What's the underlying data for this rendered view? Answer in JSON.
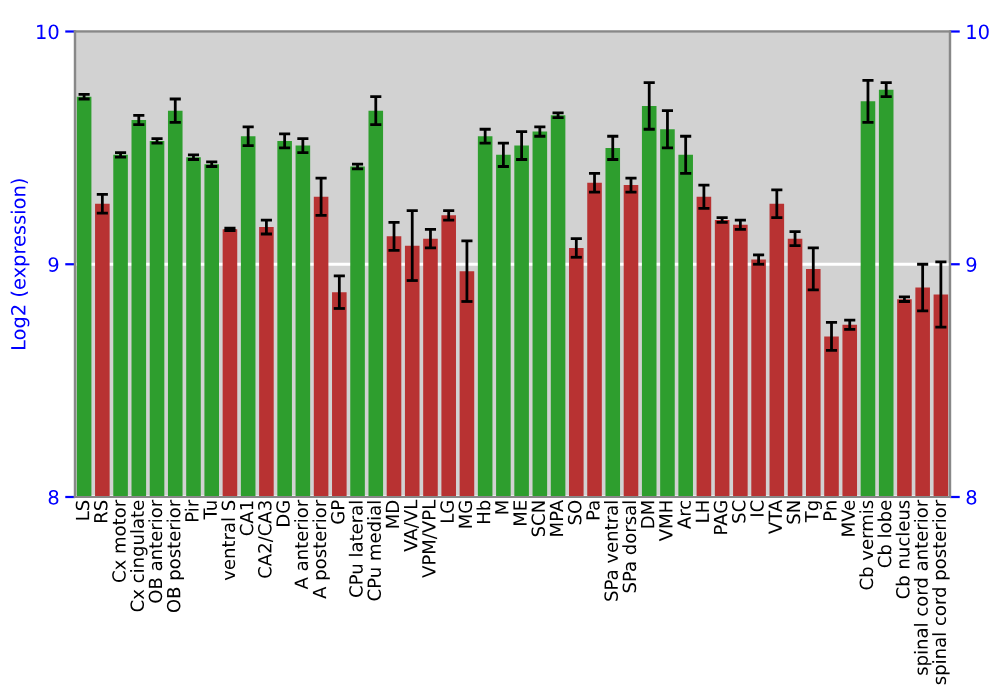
{
  "chart_data": {
    "type": "bar",
    "ylabel": "Log2 (expression)",
    "categories": [
      "LS",
      "RS",
      "Cx motor",
      "Cx cingulate",
      "OB anterior",
      "OB posterior",
      "Pir",
      "Tu",
      "ventral S",
      "CA1",
      "CA2/CA3",
      "DG",
      "A anterior",
      "A posterior",
      "GP",
      "CPu lateral",
      "CPu medial",
      "MD",
      "VA/VL",
      "VPM/VPL",
      "LG",
      "MG",
      "Hb",
      "M",
      "ME",
      "SCN",
      "MPA",
      "SO",
      "Pa",
      "SPa ventral",
      "SPa dorsal",
      "DM",
      "VMH",
      "Arc",
      "LH",
      "PAG",
      "SC",
      "IC",
      "VTA",
      "SN",
      "Tg",
      "Pn",
      "MVe",
      "Cb vermis",
      "Cb lobe",
      "Cb nucleus",
      "spinal cord anterior",
      "spinal cord posterior"
    ],
    "values": [
      9.72,
      9.26,
      9.47,
      9.62,
      9.53,
      9.66,
      9.46,
      9.43,
      9.15,
      9.55,
      9.16,
      9.53,
      9.51,
      9.29,
      8.88,
      9.42,
      9.66,
      9.12,
      9.08,
      9.11,
      9.21,
      8.97,
      9.55,
      9.47,
      9.51,
      9.57,
      9.64,
      9.07,
      9.35,
      9.5,
      9.34,
      9.68,
      9.58,
      9.47,
      9.29,
      9.19,
      9.17,
      9.02,
      9.26,
      9.11,
      8.98,
      8.69,
      8.74,
      9.7,
      9.75,
      8.85,
      8.9,
      8.87
    ],
    "errors": [
      0.01,
      0.04,
      0.01,
      0.02,
      0.01,
      0.05,
      0.01,
      0.01,
      0.005,
      0.04,
      0.03,
      0.03,
      0.03,
      0.08,
      0.07,
      0.01,
      0.06,
      0.06,
      0.15,
      0.04,
      0.02,
      0.13,
      0.03,
      0.05,
      0.06,
      0.02,
      0.01,
      0.04,
      0.04,
      0.05,
      0.03,
      0.1,
      0.08,
      0.08,
      0.05,
      0.01,
      0.02,
      0.02,
      0.06,
      0.03,
      0.09,
      0.06,
      0.02,
      0.09,
      0.03,
      0.01,
      0.1,
      0.14
    ],
    "colors": [
      "#2e9e2e",
      "#b83232",
      "#2e9e2e",
      "#2e9e2e",
      "#2e9e2e",
      "#2e9e2e",
      "#2e9e2e",
      "#2e9e2e",
      "#b83232",
      "#2e9e2e",
      "#b83232",
      "#2e9e2e",
      "#2e9e2e",
      "#b83232",
      "#b83232",
      "#2e9e2e",
      "#2e9e2e",
      "#b83232",
      "#b83232",
      "#b83232",
      "#b83232",
      "#b83232",
      "#2e9e2e",
      "#2e9e2e",
      "#2e9e2e",
      "#2e9e2e",
      "#2e9e2e",
      "#b83232",
      "#b83232",
      "#2e9e2e",
      "#b83232",
      "#2e9e2e",
      "#2e9e2e",
      "#2e9e2e",
      "#b83232",
      "#b83232",
      "#b83232",
      "#b83232",
      "#b83232",
      "#b83232",
      "#b83232",
      "#b83232",
      "#b83232",
      "#2e9e2e",
      "#2e9e2e",
      "#b83232",
      "#b83232",
      "#b83232"
    ],
    "ylim": [
      8,
      10
    ],
    "yticks": [
      8,
      9,
      10
    ],
    "y2lim": [
      8,
      10
    ],
    "y2ticks": [
      8,
      9,
      10
    ],
    "grid": "y"
  }
}
